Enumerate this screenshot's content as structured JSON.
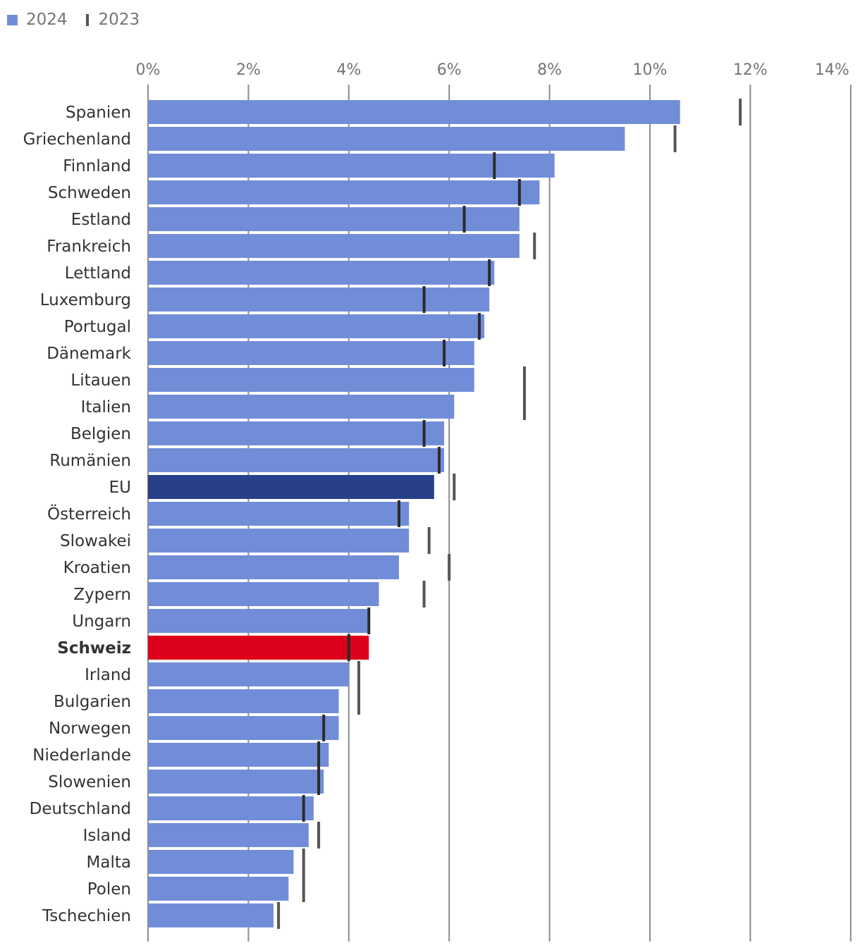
{
  "legend": {
    "series_2024": "2024",
    "series_2023": "2023"
  },
  "colors": {
    "bar_default": "#728dd8",
    "bar_eu": "#283f8a",
    "bar_switzerland": "#de001a",
    "marker_2023": "#555555",
    "marker_2023_inside": "#2b2b2b",
    "grid": "#8c8c8c",
    "label": "#333333",
    "tick": "#757575"
  },
  "chart_data": {
    "type": "bar",
    "orientation": "horizontal",
    "title": "",
    "xlabel": "",
    "ylabel": "",
    "xlim": [
      0,
      14
    ],
    "x_ticks": [
      "0%",
      "2%",
      "4%",
      "6%",
      "8%",
      "10%",
      "12%",
      "14%"
    ],
    "grid": true,
    "legend_position": "top-left",
    "categories": [
      "Spanien",
      "Griechenland",
      "Finnland",
      "Schweden",
      "Estland",
      "Frankreich",
      "Lettland",
      "Luxemburg",
      "Portugal",
      "Dänemark",
      "Litauen",
      "Italien",
      "Belgien",
      "Rumänien",
      "EU",
      "Österreich",
      "Slowakei",
      "Kroatien",
      "Zypern",
      "Ungarn",
      "Schweiz",
      "Irland",
      "Bulgarien",
      "Norwegen",
      "Niederlande",
      "Slowenien",
      "Deutschland",
      "Island",
      "Malta",
      "Polen",
      "Tschechien"
    ],
    "highlight": {
      "EU": "bar_eu",
      "Schweiz": "bar_switzerland"
    },
    "bold_categories": [
      "Schweiz"
    ],
    "series": [
      {
        "name": "2024",
        "values": [
          10.6,
          9.5,
          8.1,
          7.8,
          7.4,
          7.4,
          6.9,
          6.8,
          6.7,
          6.5,
          6.5,
          6.1,
          5.9,
          5.9,
          5.7,
          5.2,
          5.2,
          5.0,
          4.6,
          4.4,
          4.4,
          4.0,
          3.8,
          3.8,
          3.6,
          3.5,
          3.3,
          3.2,
          2.9,
          2.8,
          2.5
        ]
      },
      {
        "name": "2023",
        "values": [
          11.8,
          10.5,
          6.9,
          7.4,
          6.3,
          7.7,
          6.8,
          5.5,
          6.6,
          5.9,
          7.5,
          7.5,
          5.5,
          5.8,
          6.1,
          5.0,
          5.6,
          6.0,
          5.5,
          4.4,
          4.0,
          4.2,
          4.2,
          3.5,
          3.4,
          3.4,
          3.1,
          3.4,
          3.1,
          3.1,
          2.6
        ]
      }
    ]
  }
}
